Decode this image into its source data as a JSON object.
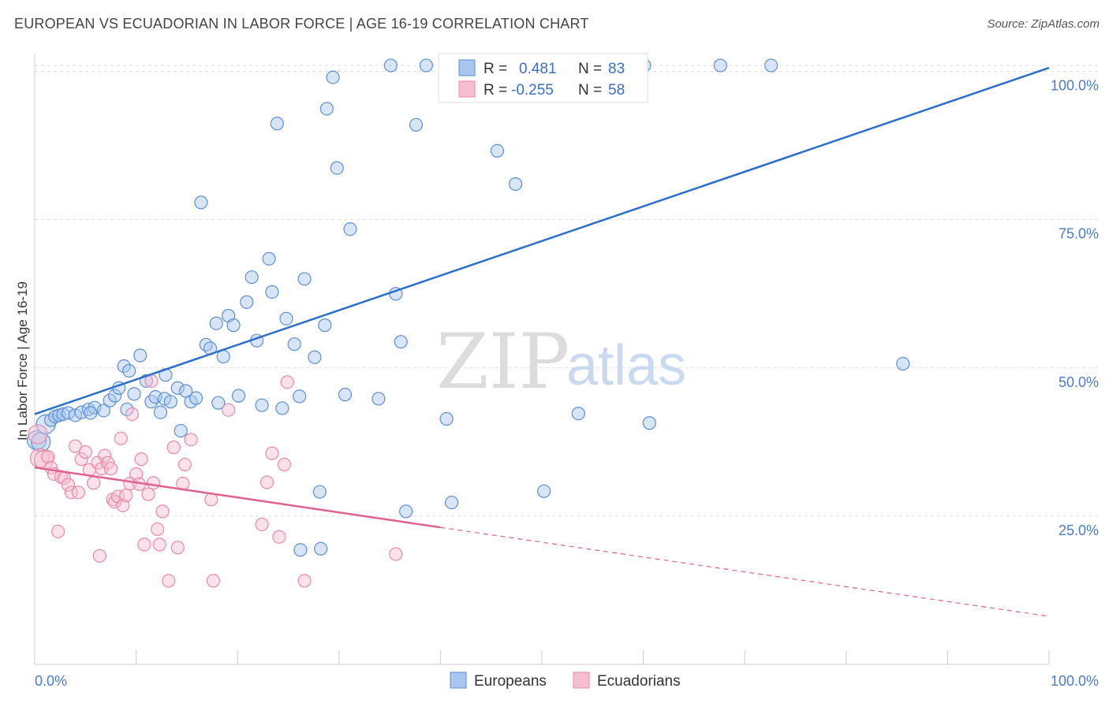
{
  "header": {
    "title": "EUROPEAN VS ECUADORIAN IN LABOR FORCE | AGE 16-19 CORRELATION CHART",
    "source": "Source: ZipAtlas.com"
  },
  "watermark": {
    "zip": "ZIP",
    "atlas": "atlas"
  },
  "colors": {
    "europeans_fill": "#a9c6ee",
    "europeans_stroke": "#5b8fd6",
    "europeans_line": "#2a6fce",
    "ecuadorians_fill": "#f6bfd0",
    "ecuadorians_stroke": "#e889a8",
    "ecuadorians_line": "#e06090",
    "grid": "#dddddd",
    "axis_label": "#4a7cc9"
  },
  "legend": {
    "rows": [
      {
        "r_label": "R =",
        "r_value": "0.481",
        "n_label": "N =",
        "n_value": "83"
      },
      {
        "r_label": "R =",
        "r_value": "-0.255",
        "n_label": "N =",
        "n_value": "58"
      }
    ]
  },
  "chart_data": {
    "type": "scatter",
    "title": "EUROPEAN VS ECUADORIAN IN LABOR FORCE | AGE 16-19 CORRELATION CHART",
    "xlabel": "",
    "ylabel": "In Labor Force | Age 16-19",
    "xlim": [
      0,
      100
    ],
    "ylim": [
      0,
      103
    ],
    "x_tick_labels": [
      "0.0%",
      "100.0%"
    ],
    "y_ticks": [
      25,
      50,
      75,
      100
    ],
    "y_tick_labels": [
      "25.0%",
      "50.0%",
      "75.0%",
      "100.0%"
    ],
    "grid": true,
    "legend_position": "bottom",
    "series": [
      {
        "name": "Europeans",
        "r": 0.481,
        "n": 83,
        "trend": {
          "x": [
            0,
            100
          ],
          "y": [
            42.2,
            100.6
          ]
        },
        "points": [
          [
            0.2,
            37.8
          ],
          [
            0.6,
            37.5
          ],
          [
            1.1,
            40.5
          ],
          [
            1.6,
            41.2
          ],
          [
            2.0,
            41.8
          ],
          [
            2.4,
            42.0
          ],
          [
            2.8,
            42.2
          ],
          [
            3.3,
            42.4
          ],
          [
            4.0,
            42.0
          ],
          [
            4.6,
            42.5
          ],
          [
            5.3,
            43.0
          ],
          [
            5.9,
            43.3
          ],
          [
            6.8,
            42.8
          ],
          [
            7.4,
            44.5
          ],
          [
            7.9,
            45.3
          ],
          [
            8.3,
            46.6
          ],
          [
            8.8,
            50.3
          ],
          [
            9.3,
            49.5
          ],
          [
            9.8,
            45.6
          ],
          [
            10.4,
            52.1
          ],
          [
            11.0,
            47.8
          ],
          [
            11.5,
            44.3
          ],
          [
            11.9,
            45.1
          ],
          [
            12.4,
            42.5
          ],
          [
            12.8,
            44.8
          ],
          [
            13.4,
            44.3
          ],
          [
            14.1,
            46.6
          ],
          [
            14.4,
            39.4
          ],
          [
            14.9,
            46.1
          ],
          [
            15.4,
            44.3
          ],
          [
            15.9,
            44.9
          ],
          [
            16.4,
            77.9
          ],
          [
            16.9,
            53.9
          ],
          [
            17.3,
            53.3
          ],
          [
            17.9,
            57.5
          ],
          [
            18.1,
            44.1
          ],
          [
            18.6,
            51.9
          ],
          [
            19.1,
            58.8
          ],
          [
            19.6,
            57.2
          ],
          [
            20.1,
            45.3
          ],
          [
            20.9,
            61.1
          ],
          [
            21.4,
            65.3
          ],
          [
            21.9,
            54.6
          ],
          [
            22.4,
            43.7
          ],
          [
            23.1,
            68.4
          ],
          [
            23.4,
            62.8
          ],
          [
            23.9,
            91.2
          ],
          [
            24.4,
            43.2
          ],
          [
            24.8,
            58.3
          ],
          [
            25.6,
            54.0
          ],
          [
            26.1,
            45.2
          ],
          [
            26.6,
            65.0
          ],
          [
            27.6,
            51.8
          ],
          [
            28.1,
            29.1
          ],
          [
            28.6,
            57.2
          ],
          [
            28.8,
            93.7
          ],
          [
            29.4,
            99.0
          ],
          [
            29.8,
            83.7
          ],
          [
            30.6,
            45.5
          ],
          [
            31.1,
            73.4
          ],
          [
            33.9,
            44.8
          ],
          [
            35.1,
            101.0
          ],
          [
            35.6,
            62.5
          ],
          [
            36.1,
            54.4
          ],
          [
            36.6,
            25.8
          ],
          [
            37.6,
            91.0
          ],
          [
            38.6,
            101.0
          ],
          [
            40.6,
            41.4
          ],
          [
            41.1,
            27.3
          ],
          [
            45.6,
            86.6
          ],
          [
            47.4,
            81.0
          ],
          [
            50.2,
            29.2
          ],
          [
            53.6,
            42.3
          ],
          [
            60.1,
            101.0
          ],
          [
            60.6,
            40.7
          ],
          [
            67.6,
            101.0
          ],
          [
            72.6,
            101.0
          ],
          [
            85.6,
            50.7
          ],
          [
            26.2,
            19.3
          ],
          [
            28.2,
            19.5
          ],
          [
            12.9,
            48.8
          ],
          [
            5.5,
            42.4
          ],
          [
            9.1,
            43.0
          ]
        ]
      },
      {
        "name": "Ecuadorians",
        "r": -0.255,
        "n": 58,
        "trend": {
          "x": [
            0,
            40
          ],
          "y": [
            33.2,
            23.1
          ],
          "x_dashed": [
            40,
            100
          ],
          "y_dashed": [
            23.1,
            8.1
          ]
        },
        "points": [
          [
            0.3,
            38.8
          ],
          [
            0.5,
            34.8
          ],
          [
            0.9,
            34.5
          ],
          [
            1.3,
            35.0
          ],
          [
            1.6,
            33.2
          ],
          [
            1.9,
            32.1
          ],
          [
            2.3,
            22.4
          ],
          [
            2.6,
            31.6
          ],
          [
            2.9,
            31.4
          ],
          [
            3.3,
            30.3
          ],
          [
            3.6,
            29.0
          ],
          [
            4.0,
            36.8
          ],
          [
            4.3,
            29.0
          ],
          [
            4.6,
            34.6
          ],
          [
            5.0,
            35.8
          ],
          [
            5.4,
            32.8
          ],
          [
            5.8,
            30.6
          ],
          [
            6.2,
            34.0
          ],
          [
            6.4,
            18.3
          ],
          [
            6.6,
            33.0
          ],
          [
            6.9,
            35.2
          ],
          [
            7.2,
            34.0
          ],
          [
            7.5,
            33.0
          ],
          [
            7.7,
            27.8
          ],
          [
            7.9,
            27.4
          ],
          [
            8.2,
            28.3
          ],
          [
            8.5,
            38.1
          ],
          [
            8.7,
            26.8
          ],
          [
            9.0,
            28.5
          ],
          [
            9.4,
            30.5
          ],
          [
            9.6,
            42.2
          ],
          [
            10.0,
            32.1
          ],
          [
            10.3,
            30.4
          ],
          [
            10.5,
            34.6
          ],
          [
            10.8,
            20.2
          ],
          [
            11.2,
            28.7
          ],
          [
            11.5,
            47.8
          ],
          [
            11.7,
            30.6
          ],
          [
            12.1,
            22.8
          ],
          [
            12.3,
            20.2
          ],
          [
            12.6,
            25.8
          ],
          [
            13.2,
            14.1
          ],
          [
            13.7,
            36.6
          ],
          [
            14.1,
            19.7
          ],
          [
            14.6,
            30.5
          ],
          [
            14.8,
            33.7
          ],
          [
            15.4,
            37.9
          ],
          [
            17.4,
            27.8
          ],
          [
            17.6,
            14.1
          ],
          [
            19.1,
            42.9
          ],
          [
            22.4,
            23.6
          ],
          [
            22.9,
            30.7
          ],
          [
            23.4,
            35.6
          ],
          [
            24.1,
            21.5
          ],
          [
            24.6,
            33.7
          ],
          [
            24.9,
            47.6
          ],
          [
            26.6,
            14.1
          ],
          [
            35.6,
            18.6
          ]
        ]
      }
    ]
  },
  "bottom_legend": {
    "items": [
      "Europeans",
      "Ecuadorians"
    ]
  }
}
